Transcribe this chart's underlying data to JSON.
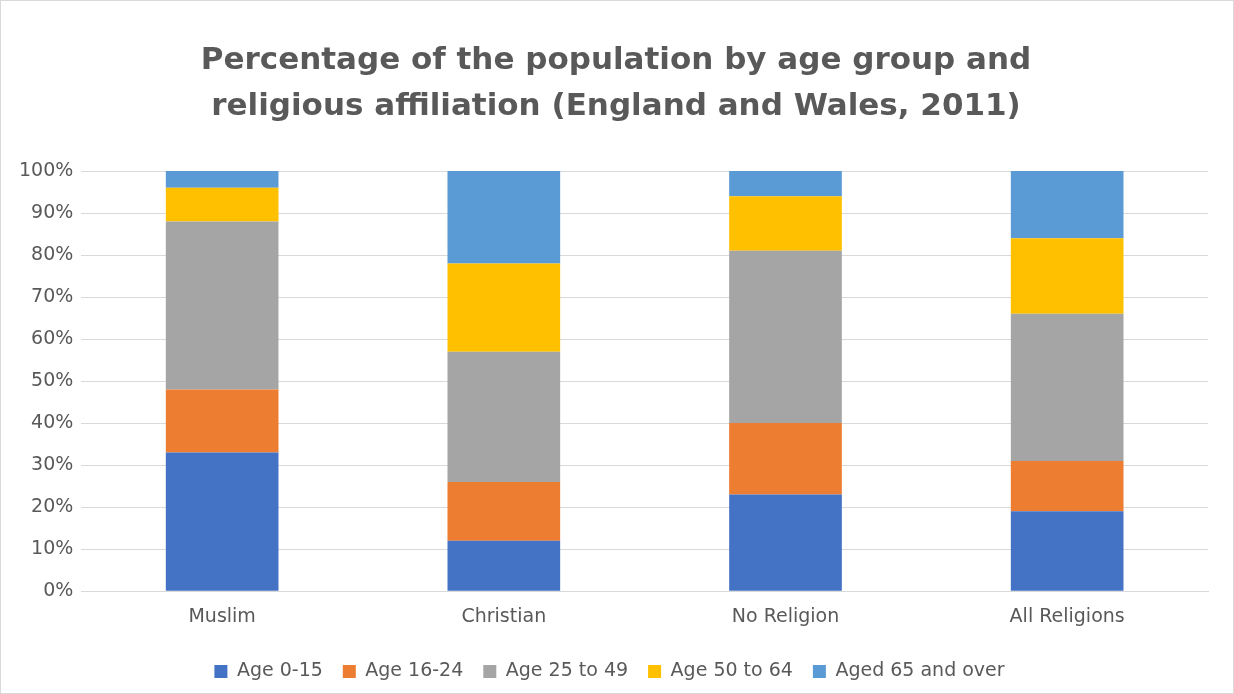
{
  "chart_data": {
    "type": "bar",
    "title": "Percentage of the population by age group and religious affiliation (England and Wales, 2011)",
    "categories": [
      "Muslim",
      "Christian",
      "No Religion",
      "All Religions"
    ],
    "stacked": true,
    "series": [
      {
        "name": "Age 0-15",
        "color": "#4472c4",
        "values": [
          33,
          12,
          23,
          19
        ]
      },
      {
        "name": "Age 16-24",
        "color": "#ed7d31",
        "values": [
          15,
          14,
          17,
          12
        ]
      },
      {
        "name": "Age 25 to 49",
        "color": "#a5a5a5",
        "values": [
          40,
          31,
          41,
          35
        ]
      },
      {
        "name": "Age 50 to 64",
        "color": "#ffc000",
        "values": [
          8,
          21,
          13,
          18
        ]
      },
      {
        "name": "Aged 65 and over",
        "color": "#5b9bd5",
        "values": [
          4,
          22,
          6,
          16
        ]
      }
    ],
    "ylim": [
      0,
      100
    ],
    "yticks": [
      {
        "value": 0,
        "label": "0%"
      },
      {
        "value": 10,
        "label": "10%"
      },
      {
        "value": 20,
        "label": "20%"
      },
      {
        "value": 30,
        "label": "30%"
      },
      {
        "value": 40,
        "label": "40%"
      },
      {
        "value": 50,
        "label": "50%"
      },
      {
        "value": 60,
        "label": "60%"
      },
      {
        "value": 70,
        "label": "70%"
      },
      {
        "value": 80,
        "label": "80%"
      },
      {
        "value": 90,
        "label": "90%"
      },
      {
        "value": 100,
        "label": "100%"
      }
    ],
    "grid": "y",
    "legend": "bottom"
  }
}
